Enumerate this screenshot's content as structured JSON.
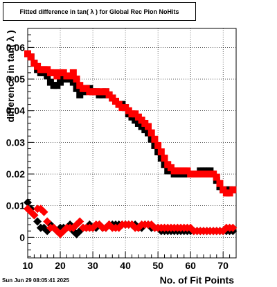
{
  "title": "Fitted difference in tan( λ ) for Global Rec Pion NoHits",
  "timestamp": "Sun Jun 29 08:05:41 2025",
  "chart_data": {
    "type": "scatter",
    "title": "Fitted difference in tan( λ ) for Global Rec Pion NoHits",
    "xlabel": "No. of Fit Points",
    "ylabel": "difference in tan( λ )",
    "xlim": [
      10,
      74
    ],
    "ylim": [
      -0.0065,
      0.066
    ],
    "x_ticks": [
      10,
      20,
      30,
      40,
      50,
      60,
      70
    ],
    "y_ticks": [
      0,
      0.01,
      0.02,
      0.03,
      0.04,
      0.05,
      0.06
    ],
    "y_tick_labels": [
      "0",
      "0.01",
      "0.02",
      "0.03",
      "0.04",
      "0.05",
      "0.06"
    ],
    "grid": true,
    "series": [
      {
        "color": "#000000",
        "marker": "square",
        "x": [
          10,
          11,
          12,
          13,
          14,
          15,
          16,
          17,
          18,
          19,
          20,
          21,
          22,
          23,
          24,
          25,
          26,
          27,
          28,
          29,
          30,
          31,
          32,
          33,
          34,
          35,
          36,
          37,
          38,
          39,
          40,
          41,
          42,
          43,
          44,
          45,
          46,
          47,
          48,
          49,
          50,
          51,
          52,
          53,
          54,
          55,
          56,
          57,
          58,
          59,
          60,
          61,
          62,
          63,
          64,
          65,
          66,
          67,
          68,
          69,
          70,
          71,
          72,
          73
        ],
        "values": [
          0.058,
          0.057,
          0.055,
          0.053,
          0.052,
          0.052,
          0.051,
          0.049,
          0.048,
          0.048,
          0.049,
          0.05,
          0.05,
          0.05,
          0.049,
          0.047,
          0.045,
          0.046,
          0.047,
          0.047,
          0.046,
          0.046,
          0.045,
          0.045,
          0.046,
          0.045,
          0.044,
          0.043,
          0.042,
          0.042,
          0.041,
          0.039,
          0.038,
          0.037,
          0.036,
          0.035,
          0.034,
          0.033,
          0.031,
          0.029,
          0.027,
          0.025,
          0.023,
          0.021,
          0.021,
          0.02,
          0.02,
          0.02,
          0.02,
          0.02,
          0.02,
          0.02,
          0.02,
          0.021,
          0.021,
          0.021,
          0.021,
          0.02,
          0.018,
          0.016,
          0.015,
          0.015,
          0.015,
          0.015
        ]
      },
      {
        "color": "#ff0000",
        "marker": "square",
        "x": [
          10,
          11,
          12,
          13,
          14,
          15,
          16,
          17,
          18,
          19,
          20,
          21,
          22,
          23,
          24,
          25,
          26,
          27,
          28,
          29,
          30,
          31,
          32,
          33,
          34,
          35,
          36,
          37,
          38,
          39,
          40,
          41,
          42,
          43,
          44,
          45,
          46,
          47,
          48,
          49,
          50,
          51,
          52,
          53,
          54,
          55,
          56,
          57,
          58,
          59,
          60,
          61,
          62,
          63,
          64,
          65,
          66,
          67,
          68,
          69,
          70,
          71,
          72,
          73
        ],
        "values": [
          0.058,
          0.057,
          0.055,
          0.054,
          0.053,
          0.053,
          0.053,
          0.052,
          0.052,
          0.051,
          0.052,
          0.052,
          0.051,
          0.051,
          0.052,
          0.05,
          0.048,
          0.047,
          0.047,
          0.046,
          0.046,
          0.046,
          0.046,
          0.046,
          0.046,
          0.045,
          0.044,
          0.043,
          0.042,
          0.041,
          0.041,
          0.04,
          0.039,
          0.039,
          0.038,
          0.037,
          0.036,
          0.035,
          0.033,
          0.031,
          0.029,
          0.027,
          0.025,
          0.023,
          0.022,
          0.021,
          0.021,
          0.021,
          0.021,
          0.021,
          0.02,
          0.02,
          0.02,
          0.02,
          0.02,
          0.02,
          0.02,
          0.02,
          0.019,
          0.017,
          0.015,
          0.014,
          0.014,
          0.015
        ]
      },
      {
        "color": "#000000",
        "marker": "diamond",
        "x": [
          10,
          11,
          12,
          13,
          14,
          15,
          16,
          17,
          18,
          19,
          20,
          21,
          22,
          23,
          24,
          25,
          26,
          27,
          28,
          29,
          30,
          31,
          32,
          33,
          34,
          35,
          36,
          37,
          38,
          39,
          40,
          41,
          42,
          43,
          44,
          45,
          46,
          47,
          48,
          49,
          50,
          51,
          52,
          53,
          54,
          55,
          56,
          57,
          58,
          59,
          60,
          61,
          62,
          63,
          64,
          65,
          66,
          67,
          68,
          69,
          70,
          71,
          72,
          73
        ],
        "values": [
          0.011,
          0.009,
          0.007,
          0.005,
          0.003,
          0.003,
          0.002,
          0.004,
          0.003,
          0.002,
          0.003,
          0.003,
          0.003,
          0.004,
          0.002,
          0.001,
          0.002,
          0.003,
          0.003,
          0.004,
          0.003,
          0.003,
          0.004,
          0.003,
          0.003,
          0.004,
          0.004,
          0.004,
          0.004,
          0.004,
          0.004,
          0.004,
          0.004,
          0.004,
          0.003,
          0.003,
          0.004,
          0.004,
          0.003,
          0.003,
          0.003,
          0.002,
          0.002,
          0.002,
          0.002,
          0.002,
          0.002,
          0.002,
          0.002,
          0.002,
          0.002,
          0.002,
          0.002,
          0.002,
          0.002,
          0.002,
          0.002,
          0.002,
          0.002,
          0.002,
          0.002,
          0.002,
          0.002,
          0.002
        ]
      },
      {
        "color": "#ff0000",
        "marker": "diamond",
        "x": [
          10,
          11,
          12,
          13,
          14,
          15,
          16,
          17,
          18,
          19,
          20,
          21,
          22,
          23,
          24,
          25,
          26,
          27,
          28,
          29,
          30,
          31,
          32,
          33,
          34,
          35,
          36,
          37,
          38,
          39,
          40,
          41,
          42,
          43,
          44,
          45,
          46,
          47,
          48,
          49,
          50,
          51,
          52,
          53,
          54,
          55,
          56,
          57,
          58,
          59,
          60,
          61,
          62,
          63,
          64,
          65,
          66,
          67,
          68,
          69,
          70,
          71,
          72,
          73
        ],
        "values": [
          0.009,
          0.008,
          0.007,
          0.009,
          0.009,
          0.008,
          0.005,
          0.003,
          0.003,
          0.002,
          0.001,
          0.002,
          0.003,
          0.003,
          0.003,
          0.004,
          0.005,
          0.003,
          0.003,
          0.003,
          0.003,
          0.004,
          0.004,
          0.003,
          0.003,
          0.004,
          0.003,
          0.003,
          0.003,
          0.004,
          0.004,
          0.004,
          0.004,
          0.003,
          0.003,
          0.004,
          0.004,
          0.004,
          0.004,
          0.003,
          0.003,
          0.003,
          0.003,
          0.003,
          0.003,
          0.003,
          0.003,
          0.003,
          0.003,
          0.003,
          0.003,
          0.002,
          0.002,
          0.002,
          0.002,
          0.002,
          0.002,
          0.002,
          0.002,
          0.002,
          0.002,
          0.003,
          0.003,
          0.003
        ]
      }
    ]
  }
}
